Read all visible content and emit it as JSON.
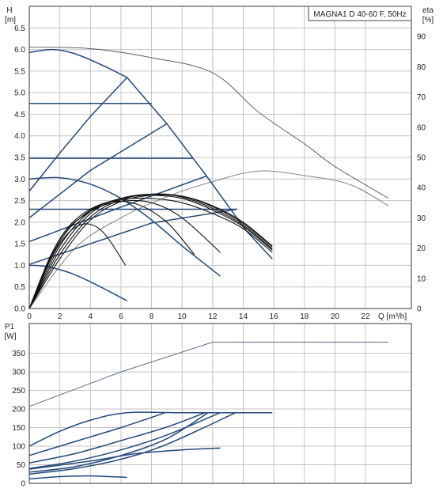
{
  "chart_data": [
    {
      "type": "line",
      "title": "MAGNA1 D 40-60 F, 50Hz",
      "ylabel": "H",
      "ylabel_unit": "[m]",
      "y2label": "eta",
      "y2label_unit": "[%]",
      "xlabel": "Q [m³/h]",
      "xlim": [
        0,
        25
      ],
      "ylim": [
        0,
        7
      ],
      "y2lim": [
        0,
        100
      ],
      "grid": true,
      "xticks": [
        "0",
        "2",
        "4",
        "6",
        "8",
        "10",
        "12",
        "14",
        "16",
        "18",
        "20",
        "22"
      ],
      "yticks": [
        "0.0",
        "0.5",
        "1.0",
        "1.5",
        "2.0",
        "2.5",
        "3.0",
        "3.5",
        "4.0",
        "4.5",
        "5.0",
        "5.5",
        "6.0",
        "6.5"
      ],
      "y2ticks": [
        "0",
        "10",
        "20",
        "30",
        "40",
        "50",
        "60",
        "70",
        "80",
        "90"
      ],
      "colors": {
        "pump": "#24497a",
        "eta": "#45556a",
        "thin": "#777777",
        "family": "#111111"
      },
      "series": [
        {
          "group": "pump",
          "x": [
            0,
            1.5,
            3,
            5,
            6.4
          ],
          "y": [
            5.93,
            6.0,
            5.9,
            5.6,
            5.35
          ]
        },
        {
          "group": "pump",
          "x": [
            6.4,
            9,
            11.6,
            14.2,
            15.9
          ],
          "y": [
            5.35,
            4.28,
            3.07,
            1.8,
            1.15
          ]
        },
        {
          "group": "pump",
          "x": [
            0,
            2,
            4,
            6.4
          ],
          "y": [
            2.72,
            3.6,
            4.45,
            5.35
          ]
        },
        {
          "group": "pump",
          "x": [
            0,
            4,
            9
          ],
          "y": [
            2.1,
            3.2,
            4.28
          ]
        },
        {
          "group": "pump",
          "x": [
            0,
            6,
            11.6
          ],
          "y": [
            1.55,
            2.35,
            3.07
          ]
        },
        {
          "group": "pump",
          "x": [
            0,
            4,
            8,
            13.6
          ],
          "y": [
            1.02,
            1.5,
            1.98,
            2.3
          ]
        },
        {
          "group": "pump",
          "x": [
            0,
            8
          ],
          "y": [
            4.75,
            4.75
          ]
        },
        {
          "group": "pump",
          "x": [
            0,
            10.7
          ],
          "y": [
            3.48,
            3.48
          ]
        },
        {
          "group": "pump",
          "x": [
            0,
            13.6
          ],
          "y": [
            2.3,
            2.3
          ]
        },
        {
          "group": "pump",
          "x": [
            0,
            2,
            4,
            6,
            8,
            10,
            12.5
          ],
          "y": [
            3.0,
            3.03,
            2.88,
            2.55,
            2.05,
            1.45,
            0.75
          ]
        },
        {
          "group": "pump",
          "x": [
            0,
            1,
            2,
            3,
            4,
            5,
            6.4
          ],
          "y": [
            1.0,
            0.98,
            0.9,
            0.78,
            0.62,
            0.44,
            0.18
          ]
        },
        {
          "group": "eta",
          "x": [
            0,
            4,
            8,
            12,
            15,
            18,
            20,
            23.5
          ],
          "y2": [
            86.5,
            86.0,
            83.0,
            78.0,
            65.0,
            54.5,
            47.0,
            36.5
          ]
        },
        {
          "group": "thin",
          "x": [
            0,
            3,
            6,
            9,
            12,
            15,
            18,
            21,
            23.5
          ],
          "y2": [
            0,
            20,
            30,
            37,
            42,
            45.5,
            44,
            41,
            34
          ]
        },
        {
          "group": "family",
          "x": [
            0,
            1,
            2,
            3,
            4,
            5,
            6.3
          ],
          "y": [
            0,
            0.85,
            1.5,
            1.88,
            1.95,
            1.7,
            1.0
          ]
        },
        {
          "group": "family",
          "x": [
            0,
            1.5,
            3,
            5,
            7,
            9,
            10.8
          ],
          "y": [
            0,
            1.3,
            2.05,
            2.45,
            2.42,
            2.0,
            1.25
          ]
        },
        {
          "group": "family",
          "x": [
            0,
            2,
            4,
            6,
            8,
            10,
            12.5
          ],
          "y": [
            0,
            1.6,
            2.25,
            2.48,
            2.45,
            2.1,
            1.3
          ]
        },
        {
          "group": "family",
          "x": [
            0,
            2,
            4,
            6,
            8,
            10,
            12,
            14,
            15.9
          ],
          "y": [
            0,
            1.55,
            2.28,
            2.52,
            2.55,
            2.45,
            2.2,
            1.85,
            1.3
          ]
        },
        {
          "group": "family",
          "x": [
            0,
            2,
            4,
            6,
            8,
            10,
            12,
            14,
            15.9
          ],
          "y": [
            0,
            1.45,
            2.25,
            2.55,
            2.62,
            2.55,
            2.28,
            1.9,
            1.35
          ]
        },
        {
          "group": "family",
          "x": [
            0,
            2,
            4,
            6,
            8,
            10,
            12,
            14,
            15.9
          ],
          "y": [
            0,
            1.35,
            2.2,
            2.55,
            2.65,
            2.58,
            2.32,
            1.93,
            1.38
          ]
        },
        {
          "group": "family",
          "x": [
            0,
            2,
            4,
            6,
            8,
            10,
            12,
            14,
            15.9
          ],
          "y": [
            0,
            1.25,
            2.12,
            2.52,
            2.65,
            2.6,
            2.36,
            1.97,
            1.42
          ]
        },
        {
          "group": "family",
          "x": [
            0,
            2,
            4,
            6,
            8,
            10,
            12,
            14,
            15.9
          ],
          "y": [
            0,
            1.15,
            2.05,
            2.48,
            2.62,
            2.6,
            2.38,
            2.0,
            1.45
          ]
        }
      ]
    },
    {
      "type": "line",
      "ylabel": "P1",
      "ylabel_unit": "[W]",
      "xlim": [
        0,
        25
      ],
      "ylim": [
        0,
        430
      ],
      "grid": true,
      "yticks": [
        "0",
        "50",
        "100",
        "150",
        "200",
        "250",
        "300",
        "350"
      ],
      "colors": {
        "pump": "#24497a",
        "max": "#5a6e88"
      },
      "series": [
        {
          "group": "max",
          "x": [
            0,
            6,
            12,
            18,
            23.5
          ],
          "y": [
            207,
            300,
            380,
            380,
            380
          ]
        },
        {
          "group": "pump",
          "x": [
            0,
            2,
            4,
            6.4,
            10,
            15.9
          ],
          "y": [
            100,
            140,
            170,
            190,
            190,
            190
          ]
        },
        {
          "group": "pump",
          "x": [
            0,
            2,
            4,
            6,
            8.9
          ],
          "y": [
            75,
            100,
            125,
            150,
            190
          ]
        },
        {
          "group": "pump",
          "x": [
            0,
            3,
            6,
            8.9,
            11.5
          ],
          "y": [
            55,
            80,
            115,
            150,
            190
          ]
        },
        {
          "group": "pump",
          "x": [
            0,
            3,
            6,
            9,
            12.5
          ],
          "y": [
            40,
            60,
            90,
            130,
            190
          ]
        },
        {
          "group": "pump",
          "x": [
            0,
            3,
            6,
            9,
            11.7
          ],
          "y": [
            30,
            45,
            75,
            120,
            190
          ]
        },
        {
          "group": "pump",
          "x": [
            0,
            3,
            6,
            9,
            13.5
          ],
          "y": [
            25,
            40,
            65,
            105,
            190
          ]
        },
        {
          "group": "pump",
          "x": [
            0,
            4,
            7,
            10,
            12.5
          ],
          "y": [
            38,
            60,
            80,
            90,
            95
          ]
        },
        {
          "group": "pump",
          "x": [
            0,
            2,
            4,
            6.4
          ],
          "y": [
            12,
            18,
            20,
            16
          ]
        }
      ]
    }
  ]
}
